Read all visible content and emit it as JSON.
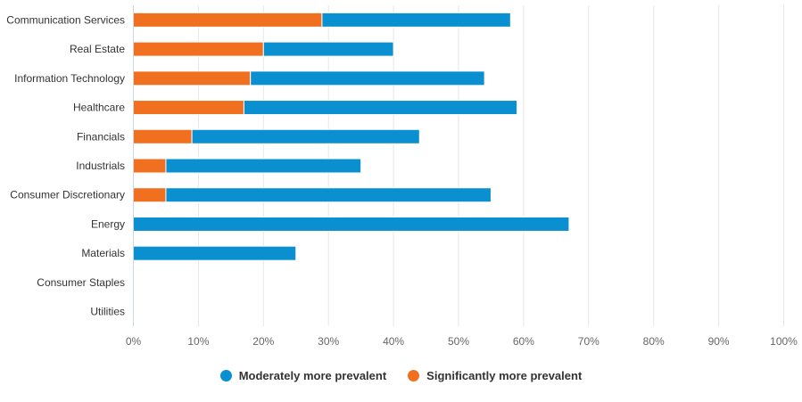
{
  "chart_data": {
    "type": "bar",
    "orientation": "horizontal",
    "stacked": true,
    "categories": [
      "Communication Services",
      "Real Estate",
      "Information Technology",
      "Healthcare",
      "Financials",
      "Industrials",
      "Consumer Discretionary",
      "Energy",
      "Materials",
      "Consumer Staples",
      "Utilities"
    ],
    "series": [
      {
        "name": "Significantly more prevalent",
        "color": "#f07020",
        "values": [
          29,
          20,
          18,
          17,
          9,
          5,
          5,
          0,
          0,
          0,
          0
        ]
      },
      {
        "name": "Moderately more prevalent",
        "color": "#0a90d0",
        "values": [
          29,
          20,
          36,
          42,
          35,
          30,
          50,
          67,
          25,
          0,
          0
        ]
      }
    ],
    "xlim": [
      0,
      100
    ],
    "xticks": [
      "0%",
      "10%",
      "20%",
      "30%",
      "40%",
      "50%",
      "60%",
      "70%",
      "80%",
      "90%",
      "100%"
    ],
    "grid": true,
    "legend_position": "bottom"
  },
  "legend": [
    {
      "label": "Moderately more prevalent",
      "color": "#0a90d0"
    },
    {
      "label": "Significantly more prevalent",
      "color": "#f07020"
    }
  ]
}
